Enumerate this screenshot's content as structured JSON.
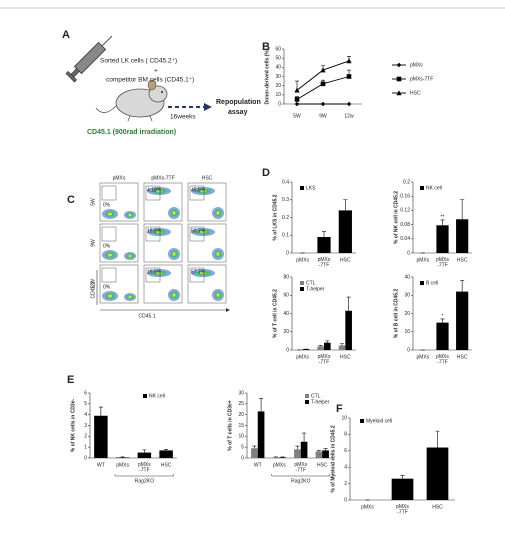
{
  "panel_labels": [
    "A",
    "B",
    "C",
    "D",
    "E",
    "F"
  ],
  "diagram": {
    "cells_line1": "Sorted LK cells ( CD45.2⁺)",
    "plus": "+",
    "cells_line2": "competitor BM cells (CD45.1⁺)",
    "duration": "16weeks",
    "outcome_line1": "Repopulation",
    "outcome_line2": "assay",
    "recipient": "CD45.1 (900rad irradiation)"
  },
  "flow": {
    "columns": [
      "pMXs",
      "pMXs-7TF",
      "HSC"
    ],
    "rows": [
      "5W",
      "9W",
      "12W"
    ],
    "percentages": [
      [
        "0%",
        "4.18%",
        "45.6%"
      ],
      [
        "0%",
        "15.9%",
        "50.7%"
      ],
      [
        "0%",
        "19.5%",
        "57.7%"
      ]
    ],
    "ylabel": "CD45.2",
    "xlabel": "CD45.1"
  },
  "chart_data": [
    {
      "type": "line",
      "ylabel": "Donor-derived cells (%)",
      "categories": [
        "5W",
        "9W",
        "12w"
      ],
      "series": [
        {
          "name": "pMXs",
          "color": "#000000",
          "marker": "diamond",
          "values": [
            0,
            0,
            0
          ]
        },
        {
          "name": "pMXs-7TF",
          "color": "#000000",
          "marker": "square",
          "values": [
            5,
            22,
            30
          ],
          "errors": [
            3,
            4,
            7
          ]
        },
        {
          "name": "HSC",
          "color": "#000000",
          "marker": "triangle",
          "values": [
            15,
            37,
            47
          ],
          "errors": [
            10,
            5,
            5
          ]
        }
      ],
      "ylim": [
        0,
        60
      ],
      "yticks": [
        0,
        10,
        20,
        30,
        40,
        50,
        60
      ]
    },
    {
      "type": "bar",
      "ylabel": "% of LKS in CD45.2",
      "categories": [
        "pMXs",
        "pMXs\n-7TF",
        "HSC"
      ],
      "series": [
        {
          "name": "LKS",
          "color": "#000000",
          "values": [
            0,
            0.09,
            0.24
          ],
          "errors": [
            0,
            0.03,
            0.06
          ]
        }
      ],
      "ylim": [
        0,
        0.4
      ],
      "yticks": [
        0,
        0.1,
        0.2,
        0.3,
        0.4
      ]
    },
    {
      "type": "bar",
      "ylabel": "% of NK cell in CD45.2",
      "categories": [
        "pMXs",
        "pMXs\n-7TF",
        "HSC"
      ],
      "series": [
        {
          "name": "NK cell",
          "color": "#000000",
          "values": [
            0,
            0.078,
            0.095
          ],
          "errors": [
            0,
            0.015,
            0.055
          ]
        }
      ],
      "ylim": [
        0,
        0.2
      ],
      "yticks": [
        0,
        0.04,
        0.08,
        0.12,
        0.16,
        0.2
      ],
      "annotation": "**"
    },
    {
      "type": "bar",
      "ylabel": "% of T cell in CD45.2",
      "categories": [
        "pMXs",
        "pMXs\n-7TF",
        "HSC"
      ],
      "series": [
        {
          "name": "CTL",
          "color": "#808080",
          "values": [
            0,
            4,
            5
          ],
          "errors": [
            0,
            1,
            2
          ]
        },
        {
          "name": "T-helper",
          "color": "#000000",
          "values": [
            1,
            8,
            43
          ],
          "errors": [
            0,
            2,
            15
          ]
        }
      ],
      "ylim": [
        0,
        80
      ],
      "yticks": [
        0,
        20,
        40,
        60,
        80
      ]
    },
    {
      "type": "bar",
      "ylabel": "% of B cell in CD45.2",
      "categories": [
        "pMXs",
        "pMXs\n-7TF",
        "HSC"
      ],
      "series": [
        {
          "name": "B cell",
          "color": "#000000",
          "values": [
            0,
            15,
            32
          ],
          "errors": [
            0,
            2,
            6
          ]
        }
      ],
      "ylim": [
        0,
        40
      ],
      "yticks": [
        0,
        10,
        20,
        30,
        40
      ],
      "annotation": "*"
    },
    {
      "type": "bar",
      "ylabel": "% of NK cells in CD3e-",
      "categories": [
        "WT",
        "pMXs",
        "pMXs\n-7TF",
        "HSC"
      ],
      "series": [
        {
          "name": "NK cell",
          "color": "#000000",
          "values": [
            3.9,
            0.05,
            0.5,
            0.7
          ],
          "errors": [
            0.8,
            0.05,
            0.25,
            0.1
          ]
        }
      ],
      "ylim": [
        0,
        6
      ],
      "yticks": [
        0,
        1,
        2,
        3,
        4,
        5,
        6
      ],
      "group_label": "Rag2KO"
    },
    {
      "type": "bar",
      "ylabel": "% of T cells in CD3e+",
      "categories": [
        "WT",
        "pMXs",
        "pMXs\n-7TF",
        "HSC"
      ],
      "series": [
        {
          "name": "CTL",
          "color": "#808080",
          "values": [
            4.5,
            0.3,
            4,
            3
          ],
          "errors": [
            1,
            0.2,
            1.5,
            0.5
          ]
        },
        {
          "name": "T-helper",
          "color": "#000000",
          "values": [
            21.5,
            0.3,
            7.5,
            3.5
          ],
          "errors": [
            6,
            0.2,
            4,
            0.8
          ]
        }
      ],
      "ylim": [
        0,
        30
      ],
      "yticks": [
        0,
        5,
        10,
        15,
        20,
        25,
        30
      ],
      "group_label": "Rag2KO"
    },
    {
      "type": "bar",
      "ylabel": "% of Myeloid cells in CD45.2",
      "categories": [
        "pMXs",
        "pMXs\n-7TF",
        "HSC"
      ],
      "series": [
        {
          "name": "Myeloid cell",
          "color": "#000000",
          "values": [
            0,
            2.6,
            6.4
          ],
          "errors": [
            0,
            0.4,
            2
          ]
        }
      ],
      "ylim": [
        0,
        10
      ],
      "yticks": [
        0,
        2,
        4,
        6,
        8,
        10
      ]
    }
  ]
}
